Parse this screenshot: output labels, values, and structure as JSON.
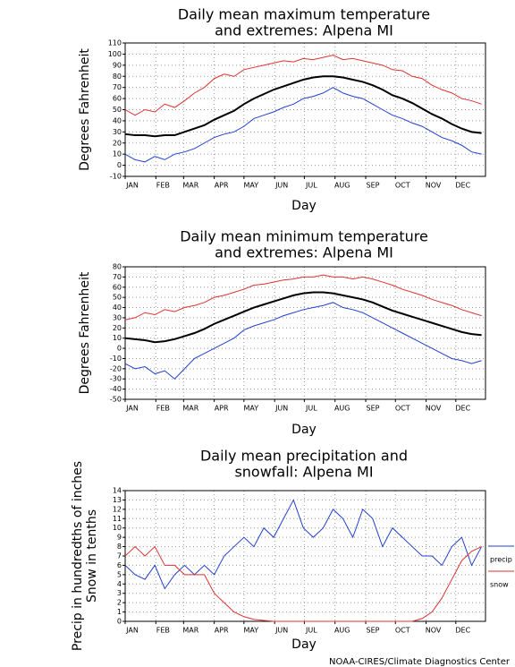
{
  "chart_data": [
    {
      "type": "line",
      "title": [
        "Daily mean maximum temperature",
        "and extremes: Alpena MI"
      ],
      "ylabel": [
        "Degrees Fahrenheit"
      ],
      "xlabel": "Day",
      "x": [
        1,
        11,
        21,
        31,
        41,
        51,
        61,
        71,
        81,
        91,
        101,
        111,
        121,
        131,
        141,
        151,
        161,
        171,
        181,
        191,
        201,
        211,
        221,
        231,
        241,
        251,
        261,
        271,
        281,
        291,
        301,
        311,
        321,
        331,
        341,
        351,
        361
      ],
      "xlim": [
        1,
        365
      ],
      "xticks": [
        {
          "value": 1,
          "label": "JAN"
        },
        {
          "value": 32,
          "label": "FEB"
        },
        {
          "value": 60,
          "label": "MAR"
        },
        {
          "value": 91,
          "label": "APR"
        },
        {
          "value": 121,
          "label": "MAY"
        },
        {
          "value": 152,
          "label": "JUN"
        },
        {
          "value": 182,
          "label": "JUL"
        },
        {
          "value": 213,
          "label": "AUG"
        },
        {
          "value": 244,
          "label": "SEP"
        },
        {
          "value": 274,
          "label": "OCT"
        },
        {
          "value": 305,
          "label": "NOV"
        },
        {
          "value": 335,
          "label": "DEC"
        }
      ],
      "ylim": [
        -10,
        110
      ],
      "yticks": [
        -10,
        0,
        10,
        20,
        30,
        40,
        50,
        60,
        70,
        80,
        90,
        100,
        110
      ],
      "grid": true,
      "series": [
        {
          "color": "#e03030",
          "values": [
            50,
            45,
            50,
            48,
            55,
            52,
            58,
            65,
            70,
            78,
            82,
            80,
            86,
            88,
            90,
            92,
            94,
            93,
            96,
            95,
            97,
            99,
            95,
            96,
            94,
            92,
            90,
            86,
            85,
            80,
            78,
            72,
            68,
            65,
            60,
            58,
            55
          ]
        },
        {
          "color": "#000000",
          "values": [
            28,
            27,
            27,
            26,
            27,
            27,
            30,
            33,
            36,
            41,
            45,
            49,
            55,
            60,
            64,
            68,
            71,
            74,
            77,
            79,
            80,
            80,
            79,
            77,
            75,
            72,
            68,
            63,
            60,
            56,
            51,
            46,
            42,
            37,
            33,
            30,
            29
          ]
        },
        {
          "color": "#2040d0",
          "values": [
            10,
            5,
            3,
            8,
            5,
            10,
            12,
            15,
            20,
            25,
            28,
            30,
            35,
            42,
            45,
            48,
            52,
            55,
            60,
            62,
            65,
            70,
            65,
            62,
            60,
            55,
            50,
            45,
            42,
            38,
            35,
            30,
            25,
            22,
            18,
            12,
            10
          ]
        }
      ]
    },
    {
      "type": "line",
      "title": [
        "Daily mean minimum temperature",
        "and extremes: Alpena MI"
      ],
      "ylabel": [
        "Degrees Fahrenheit"
      ],
      "xlabel": "Day",
      "x": [
        1,
        11,
        21,
        31,
        41,
        51,
        61,
        71,
        81,
        91,
        101,
        111,
        121,
        131,
        141,
        151,
        161,
        171,
        181,
        191,
        201,
        211,
        221,
        231,
        241,
        251,
        261,
        271,
        281,
        291,
        301,
        311,
        321,
        331,
        341,
        351,
        361
      ],
      "xlim": [
        1,
        365
      ],
      "xticks": [
        {
          "value": 1,
          "label": "JAN"
        },
        {
          "value": 32,
          "label": "FEB"
        },
        {
          "value": 60,
          "label": "MAR"
        },
        {
          "value": 91,
          "label": "APR"
        },
        {
          "value": 121,
          "label": "MAY"
        },
        {
          "value": 152,
          "label": "JUN"
        },
        {
          "value": 182,
          "label": "JUL"
        },
        {
          "value": 213,
          "label": "AUG"
        },
        {
          "value": 244,
          "label": "SEP"
        },
        {
          "value": 274,
          "label": "OCT"
        },
        {
          "value": 305,
          "label": "NOV"
        },
        {
          "value": 335,
          "label": "DEC"
        }
      ],
      "ylim": [
        -50,
        80
      ],
      "yticks": [
        -50,
        -40,
        -30,
        -20,
        -10,
        0,
        10,
        20,
        30,
        40,
        50,
        60,
        70,
        80
      ],
      "grid": true,
      "series": [
        {
          "color": "#e03030",
          "values": [
            28,
            30,
            35,
            33,
            38,
            36,
            40,
            42,
            45,
            50,
            52,
            55,
            58,
            62,
            63,
            65,
            67,
            68,
            70,
            70,
            72,
            70,
            70,
            68,
            70,
            68,
            65,
            62,
            58,
            55,
            52,
            48,
            45,
            42,
            38,
            35,
            32
          ]
        },
        {
          "color": "#000000",
          "values": [
            10,
            9,
            8,
            6,
            7,
            9,
            12,
            15,
            19,
            24,
            28,
            32,
            36,
            40,
            43,
            46,
            49,
            52,
            54,
            55,
            55,
            54,
            52,
            50,
            48,
            45,
            41,
            37,
            34,
            31,
            28,
            25,
            22,
            19,
            16,
            14,
            13
          ]
        },
        {
          "color": "#2040d0",
          "values": [
            -15,
            -20,
            -18,
            -25,
            -22,
            -30,
            -20,
            -10,
            -5,
            0,
            5,
            10,
            18,
            22,
            25,
            28,
            32,
            35,
            38,
            40,
            42,
            45,
            40,
            38,
            35,
            30,
            25,
            20,
            15,
            10,
            5,
            0,
            -5,
            -10,
            -12,
            -15,
            -12
          ]
        }
      ]
    },
    {
      "type": "line",
      "title": [
        "Daily mean precipitation and",
        "snowfall: Alpena MI"
      ],
      "ylabel": [
        "Precip in hundredths of inches",
        "Snow in tenths"
      ],
      "xlabel": "Day",
      "x": [
        1,
        11,
        21,
        31,
        41,
        51,
        61,
        71,
        81,
        91,
        101,
        111,
        121,
        131,
        141,
        151,
        161,
        171,
        181,
        191,
        201,
        211,
        221,
        231,
        241,
        251,
        261,
        271,
        281,
        291,
        301,
        311,
        321,
        331,
        341,
        351,
        361
      ],
      "xlim": [
        1,
        365
      ],
      "xticks": [
        {
          "value": 1,
          "label": "JAN"
        },
        {
          "value": 32,
          "label": "FEB"
        },
        {
          "value": 60,
          "label": "MAR"
        },
        {
          "value": 91,
          "label": "APR"
        },
        {
          "value": 121,
          "label": "MAY"
        },
        {
          "value": 152,
          "label": "JUN"
        },
        {
          "value": 182,
          "label": "JUL"
        },
        {
          "value": 213,
          "label": "AUG"
        },
        {
          "value": 244,
          "label": "SEP"
        },
        {
          "value": 274,
          "label": "OCT"
        },
        {
          "value": 305,
          "label": "NOV"
        },
        {
          "value": 335,
          "label": "DEC"
        }
      ],
      "ylim": [
        0,
        14
      ],
      "yticks": [
        0,
        1,
        2,
        3,
        4,
        5,
        6,
        7,
        8,
        9,
        10,
        11,
        12,
        13,
        14
      ],
      "grid": true,
      "legend": "right",
      "series": [
        {
          "name": "precip",
          "color": "#2040d0",
          "values": [
            6,
            5,
            4.5,
            6,
            3.5,
            5,
            6,
            5,
            6,
            5,
            7,
            8,
            9,
            8,
            10,
            9,
            11,
            13,
            10,
            9,
            10,
            12,
            11,
            9,
            12,
            11,
            8,
            10,
            9,
            8,
            7,
            7,
            6,
            8,
            9,
            6,
            8
          ]
        },
        {
          "name": "snow",
          "color": "#e03030",
          "values": [
            7,
            8,
            7,
            8,
            6,
            6,
            5,
            5,
            5,
            3,
            2,
            1,
            0.5,
            0.2,
            0.1,
            0,
            0,
            0,
            0,
            0,
            0,
            0,
            0,
            0,
            0,
            0,
            0,
            0,
            0,
            0,
            0.3,
            1,
            2.5,
            4.5,
            6.5,
            7.5,
            8
          ]
        }
      ]
    }
  ],
  "footer": "NOAA-CIRES/Climate Diagnostics Center"
}
